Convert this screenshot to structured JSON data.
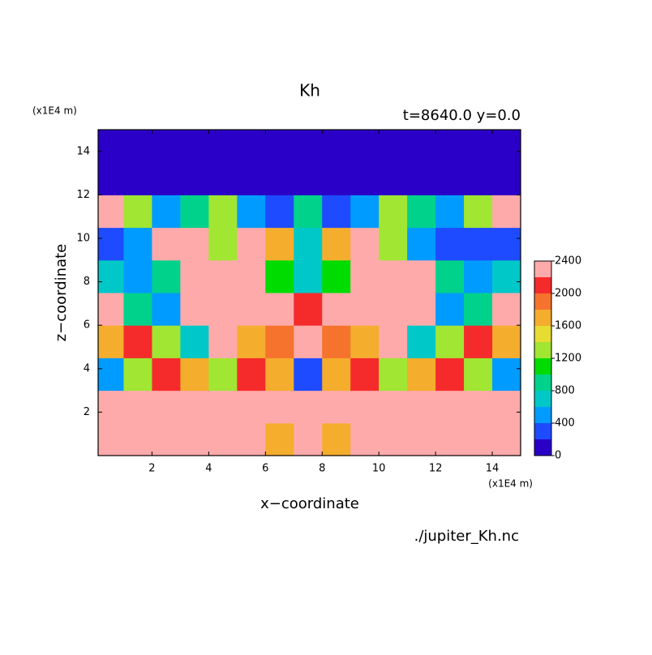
{
  "chart_data": {
    "type": "contour",
    "title": "Kh",
    "subtitle": "t=8640.0 y=0.0",
    "x_label": "x−coordinate",
    "y_label": "z−coordinate",
    "x_unit": "(x1E4 m)",
    "y_unit": "(x1E4 m)",
    "source": "./jupiter_Kh.nc",
    "xlim": [
      0.1,
      15
    ],
    "ylim": [
      0,
      15
    ],
    "xticks": [
      2,
      4,
      6,
      8,
      10,
      12,
      14
    ],
    "yticks": [
      2,
      4,
      6,
      8,
      10,
      12,
      14
    ],
    "levels": [
      0,
      200,
      400,
      600,
      800,
      1000,
      1200,
      1400,
      1600,
      1800,
      2000,
      2200,
      2400
    ],
    "colors": [
      "#8000a8",
      "#2a00c8",
      "#1e4bff",
      "#009bff",
      "#00c8c8",
      "#00d28c",
      "#00dc00",
      "#a0e632",
      "#e6dc32",
      "#f5ad2d",
      "#f5732d",
      "#f52b2b",
      "#ffaaaa"
    ],
    "colorbar_ticks": [
      0,
      400,
      800,
      1200,
      1600,
      2000,
      2400
    ],
    "x": [
      0.5,
      1.5,
      2.5,
      3.5,
      4.5,
      5.5,
      6.5,
      7.5,
      8.5,
      9.5,
      10.5,
      11.5,
      12.5,
      13.5,
      14.5
    ],
    "z": [
      0.75,
      2.25,
      3.75,
      5.25,
      6.75,
      8.25,
      9.75,
      11.25,
      12.75,
      14.25
    ],
    "values": [
      [
        2400,
        2400,
        2400,
        2400,
        2400,
        2400,
        1600,
        2400,
        1600,
        2400,
        2400,
        2400,
        2400,
        2400,
        2400
      ],
      [
        2400,
        2400,
        2200,
        2400,
        2400,
        2400,
        2400,
        2400,
        2400,
        2400,
        2400,
        2400,
        2200,
        2400,
        2400
      ],
      [
        400,
        1200,
        2000,
        1600,
        1200,
        2000,
        1600,
        200,
        1600,
        2000,
        1200,
        1600,
        2000,
        1200,
        400
      ],
      [
        1600,
        2000,
        1200,
        600,
        2400,
        1600,
        1800,
        2400,
        1800,
        1600,
        2400,
        600,
        1200,
        2000,
        1600
      ],
      [
        2400,
        800,
        400,
        2400,
        2400,
        2400,
        2400,
        2000,
        2400,
        2400,
        2400,
        2400,
        400,
        800,
        2400
      ],
      [
        600,
        400,
        800,
        2400,
        2400,
        2400,
        1000,
        600,
        1000,
        2400,
        2400,
        2400,
        800,
        400,
        600
      ],
      [
        200,
        400,
        2400,
        2400,
        1200,
        2400,
        1600,
        600,
        1600,
        2400,
        1200,
        400,
        200,
        200,
        300
      ],
      [
        2400,
        1200,
        400,
        800,
        1200,
        400,
        200,
        800,
        200,
        400,
        1200,
        800,
        400,
        1200,
        2400
      ],
      [
        100,
        100,
        100,
        100,
        100,
        100,
        100,
        100,
        100,
        100,
        100,
        100,
        100,
        100,
        100
      ],
      [
        100,
        100,
        100,
        100,
        100,
        100,
        100,
        100,
        100,
        100,
        100,
        100,
        100,
        100,
        100
      ]
    ]
  }
}
